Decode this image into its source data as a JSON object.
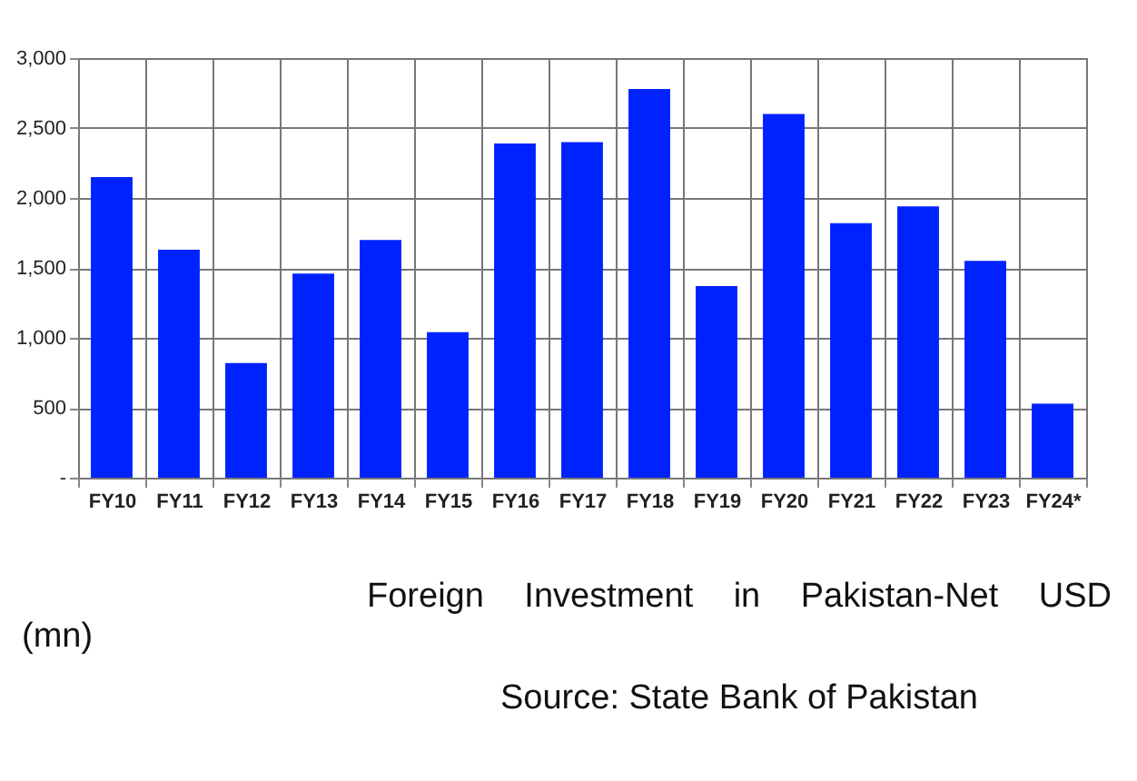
{
  "chart_data": {
    "type": "bar",
    "categories": [
      "FY10",
      "FY11",
      "FY12",
      "FY13",
      "FY14",
      "FY15",
      "FY16",
      "FY17",
      "FY18",
      "FY19",
      "FY20",
      "FY21",
      "FY22",
      "FY23",
      "FY24*"
    ],
    "values": [
      2150,
      1630,
      820,
      1460,
      1700,
      1040,
      2390,
      2400,
      2780,
      1370,
      2600,
      1820,
      1940,
      1550,
      530
    ],
    "color": "#0022ff",
    "ylim": [
      0,
      3000
    ],
    "yticks": [
      {
        "value": 0,
        "label": "-"
      },
      {
        "value": 500,
        "label": "500"
      },
      {
        "value": 1000,
        "label": "1,000"
      },
      {
        "value": 1500,
        "label": "1,500"
      },
      {
        "value": 2000,
        "label": "2,000"
      },
      {
        "value": 2500,
        "label": "2,500"
      },
      {
        "value": 3000,
        "label": "3,000"
      }
    ],
    "grid": true,
    "annotations": [
      "Foreign Investment in Pakistan-Net USD (mn)",
      "Source: State Bank of Pakistan"
    ]
  }
}
